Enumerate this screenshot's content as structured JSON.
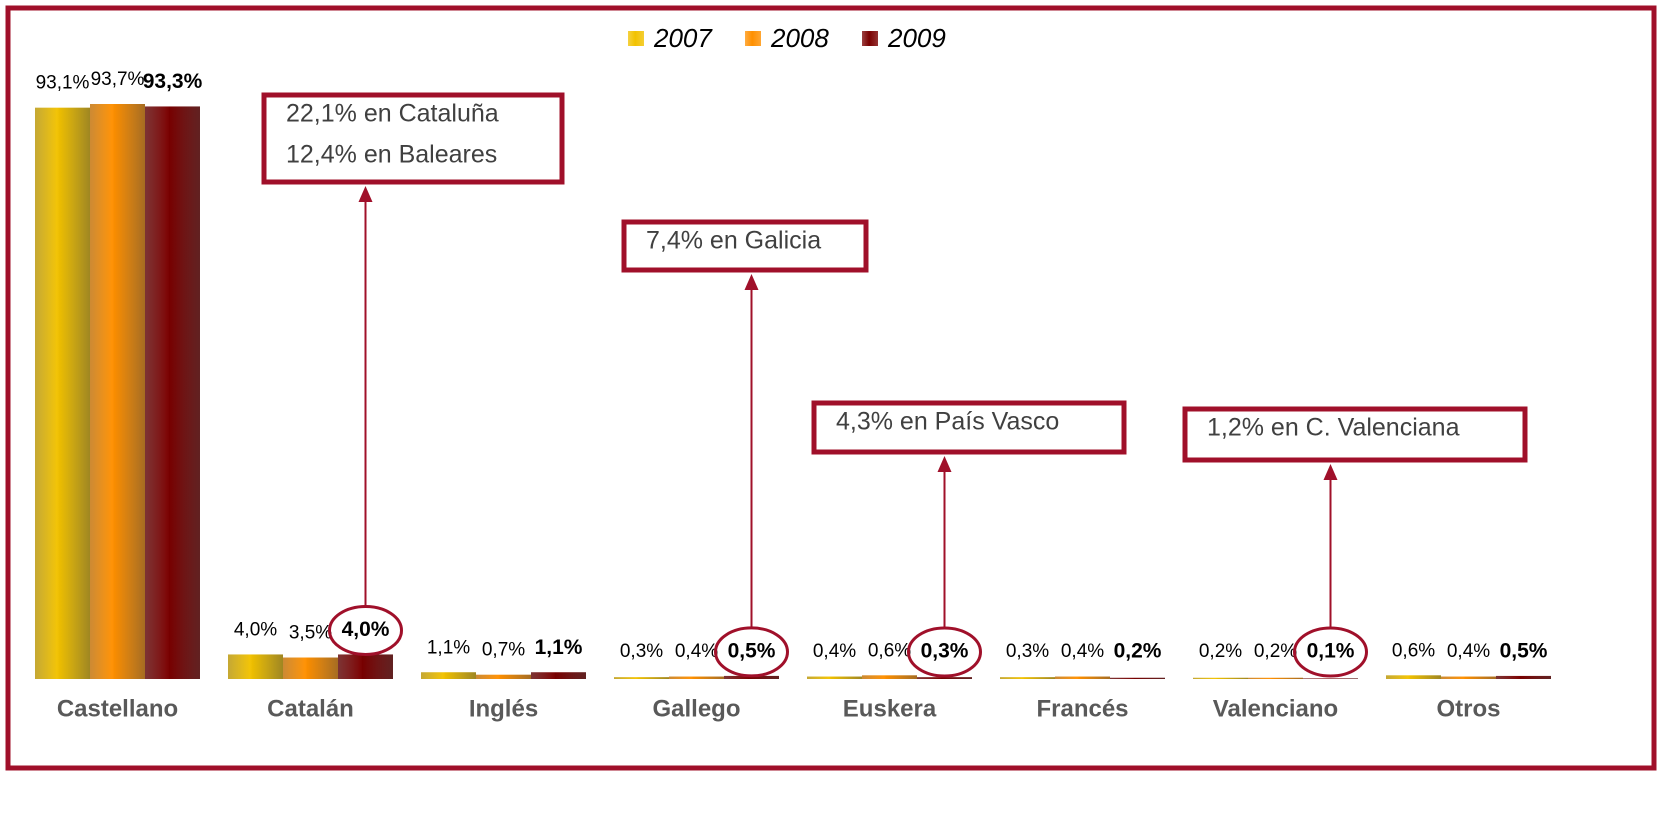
{
  "chart_data": {
    "type": "bar",
    "categories": [
      "Castellano",
      "Catalán",
      "Inglés",
      "Gallego",
      "Euskera",
      "Francés",
      "Valenciano",
      "Otros"
    ],
    "series": [
      {
        "name": "2007",
        "color": "#f2c200",
        "values": [
          93.1,
          4.0,
          1.1,
          0.3,
          0.4,
          0.3,
          0.2,
          0.6
        ],
        "value_labels": [
          "93,1%",
          "4,0%",
          "1,1%",
          "0,3%",
          "0,4%",
          "0,3%",
          "0,2%",
          "0,6%"
        ]
      },
      {
        "name": "2008",
        "color": "#ff9000",
        "values": [
          93.7,
          3.5,
          0.7,
          0.4,
          0.6,
          0.4,
          0.2,
          0.4
        ],
        "value_labels": [
          "93,7%",
          "3,5%",
          "0,7%",
          "0,4%",
          "0,6%",
          "0,4%",
          "0,2%",
          "0,4%"
        ]
      },
      {
        "name": "2009",
        "color": "#7a0000",
        "values": [
          93.3,
          4.0,
          1.1,
          0.5,
          0.3,
          0.2,
          0.1,
          0.5
        ],
        "value_labels": [
          "93,3%",
          "4,0%",
          "1,1%",
          "0,5%",
          "0,3%",
          "0,2%",
          "0,1%",
          "0,5%"
        ]
      }
    ],
    "annotations": [
      {
        "category": "Catalán",
        "lines": [
          "22,1% en Cataluña",
          "12,4% en Baleares"
        ]
      },
      {
        "category": "Gallego",
        "lines": [
          "7,4% en Galicia"
        ]
      },
      {
        "category": "Euskera",
        "lines": [
          "4,3% en País Vasco"
        ]
      },
      {
        "category": "Valenciano",
        "lines": [
          "1,2% en C. Valenciana"
        ]
      }
    ],
    "legend": "top"
  }
}
